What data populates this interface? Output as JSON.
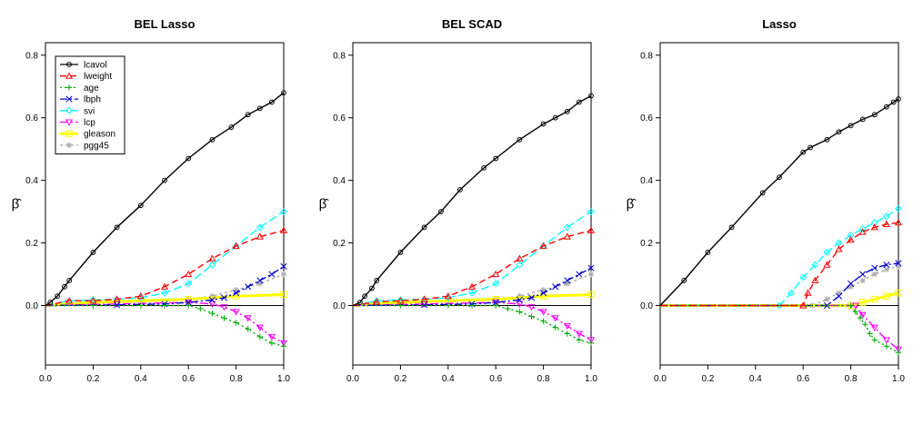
{
  "chart_data": [
    {
      "type": "line",
      "title": "BEL Lasso",
      "xlabel": "",
      "ylabel": "β̂",
      "xlim": [
        0,
        1
      ],
      "ylim": [
        -0.19,
        0.84
      ],
      "xticks": [
        "0.0",
        "0.2",
        "0.4",
        "0.6",
        "0.8",
        "1.0"
      ],
      "yticks": [
        "0.0",
        "0.2",
        "0.4",
        "0.6",
        "0.8"
      ],
      "grid": false,
      "legend": "top-left",
      "series": [
        {
          "name": "lcavol",
          "x": [
            0,
            0.02,
            0.05,
            0.08,
            0.1,
            0.2,
            0.3,
            0.4,
            0.5,
            0.6,
            0.7,
            0.78,
            0.85,
            0.9,
            0.95,
            1.0
          ],
          "y": [
            0,
            0.01,
            0.03,
            0.06,
            0.08,
            0.17,
            0.25,
            0.32,
            0.4,
            0.47,
            0.53,
            0.57,
            0.61,
            0.63,
            0.65,
            0.68
          ]
        },
        {
          "name": "lweight",
          "x": [
            0,
            0.1,
            0.2,
            0.3,
            0.4,
            0.5,
            0.6,
            0.7,
            0.8,
            0.9,
            1.0
          ],
          "y": [
            0,
            0.015,
            0.015,
            0.02,
            0.03,
            0.06,
            0.1,
            0.15,
            0.19,
            0.22,
            0.24
          ]
        },
        {
          "name": "age",
          "x": [
            0,
            0.2,
            0.4,
            0.5,
            0.6,
            0.65,
            0.7,
            0.75,
            0.8,
            0.85,
            0.9,
            0.95,
            1.0
          ],
          "y": [
            0,
            0.0,
            0.0,
            0.0,
            0.0,
            -0.01,
            -0.025,
            -0.04,
            -0.055,
            -0.075,
            -0.1,
            -0.12,
            -0.13
          ]
        },
        {
          "name": "lbph",
          "x": [
            0,
            0.3,
            0.5,
            0.6,
            0.7,
            0.75,
            0.8,
            0.85,
            0.9,
            0.95,
            1.0
          ],
          "y": [
            0,
            0.002,
            0.005,
            0.01,
            0.018,
            0.025,
            0.04,
            0.06,
            0.08,
            0.1,
            0.125
          ]
        },
        {
          "name": "svi",
          "x": [
            0,
            0.1,
            0.2,
            0.3,
            0.4,
            0.5,
            0.6,
            0.7,
            0.8,
            0.9,
            1.0
          ],
          "y": [
            0,
            0.015,
            0.018,
            0.02,
            0.025,
            0.04,
            0.07,
            0.13,
            0.19,
            0.25,
            0.3
          ]
        },
        {
          "name": "lcp",
          "x": [
            0,
            0.3,
            0.6,
            0.7,
            0.75,
            0.8,
            0.85,
            0.9,
            0.95,
            1.0
          ],
          "y": [
            0,
            0.005,
            0.01,
            0.005,
            -0.005,
            -0.02,
            -0.04,
            -0.07,
            -0.1,
            -0.12
          ]
        },
        {
          "name": "gleason",
          "x": [
            0,
            0.2,
            0.4,
            0.6,
            0.8,
            1.0
          ],
          "y": [
            0,
            0.01,
            0.015,
            0.02,
            0.03,
            0.035
          ]
        },
        {
          "name": "pgg45",
          "x": [
            0,
            0.2,
            0.4,
            0.6,
            0.7,
            0.8,
            0.9,
            1.0
          ],
          "y": [
            0,
            0.01,
            0.015,
            0.02,
            0.03,
            0.05,
            0.07,
            0.1
          ]
        }
      ]
    },
    {
      "type": "line",
      "title": "BEL SCAD",
      "xlabel": "",
      "ylabel": "β̂",
      "xlim": [
        0,
        1
      ],
      "ylim": [
        -0.19,
        0.84
      ],
      "xticks": [
        "0.0",
        "0.2",
        "0.4",
        "0.6",
        "0.8",
        "1.0"
      ],
      "yticks": [
        "0.0",
        "0.2",
        "0.4",
        "0.6",
        "0.8"
      ],
      "grid": false,
      "legend": "",
      "series": [
        {
          "name": "lcavol",
          "x": [
            0,
            0.03,
            0.05,
            0.08,
            0.1,
            0.2,
            0.3,
            0.37,
            0.45,
            0.55,
            0.6,
            0.7,
            0.8,
            0.85,
            0.9,
            0.95,
            1.0
          ],
          "y": [
            0,
            0.01,
            0.03,
            0.055,
            0.08,
            0.17,
            0.25,
            0.3,
            0.37,
            0.44,
            0.47,
            0.53,
            0.58,
            0.6,
            0.62,
            0.65,
            0.67
          ]
        },
        {
          "name": "lweight",
          "x": [
            0,
            0.1,
            0.2,
            0.3,
            0.4,
            0.5,
            0.6,
            0.7,
            0.8,
            0.9,
            1.0
          ],
          "y": [
            0,
            0.012,
            0.015,
            0.02,
            0.03,
            0.06,
            0.1,
            0.15,
            0.19,
            0.22,
            0.24
          ]
        },
        {
          "name": "age",
          "x": [
            0,
            0.2,
            0.4,
            0.5,
            0.6,
            0.65,
            0.7,
            0.75,
            0.8,
            0.85,
            0.9,
            0.95,
            1.0
          ],
          "y": [
            0,
            0.0,
            0.0,
            0.0,
            0.0,
            -0.01,
            -0.02,
            -0.035,
            -0.05,
            -0.07,
            -0.09,
            -0.11,
            -0.12
          ]
        },
        {
          "name": "lbph",
          "x": [
            0,
            0.3,
            0.5,
            0.6,
            0.7,
            0.75,
            0.8,
            0.85,
            0.9,
            0.95,
            1.0
          ],
          "y": [
            0,
            0.002,
            0.005,
            0.01,
            0.018,
            0.025,
            0.04,
            0.06,
            0.08,
            0.1,
            0.12
          ]
        },
        {
          "name": "svi",
          "x": [
            0,
            0.1,
            0.2,
            0.3,
            0.4,
            0.5,
            0.6,
            0.7,
            0.8,
            0.9,
            1.0
          ],
          "y": [
            0,
            0.015,
            0.018,
            0.02,
            0.025,
            0.04,
            0.07,
            0.13,
            0.19,
            0.25,
            0.3
          ]
        },
        {
          "name": "lcp",
          "x": [
            0,
            0.3,
            0.6,
            0.7,
            0.75,
            0.8,
            0.85,
            0.9,
            0.95,
            1.0
          ],
          "y": [
            0,
            0.005,
            0.01,
            0.005,
            -0.005,
            -0.02,
            -0.04,
            -0.065,
            -0.09,
            -0.11
          ]
        },
        {
          "name": "gleason",
          "x": [
            0,
            0.2,
            0.4,
            0.6,
            0.8,
            1.0
          ],
          "y": [
            0,
            0.01,
            0.015,
            0.02,
            0.03,
            0.035
          ]
        },
        {
          "name": "pgg45",
          "x": [
            0,
            0.2,
            0.4,
            0.6,
            0.7,
            0.8,
            0.9,
            1.0
          ],
          "y": [
            0,
            0.01,
            0.015,
            0.02,
            0.03,
            0.05,
            0.07,
            0.1
          ]
        }
      ]
    },
    {
      "type": "line",
      "title": "Lasso",
      "xlabel": "",
      "ylabel": "β̂",
      "xlim": [
        0,
        1
      ],
      "ylim": [
        -0.19,
        0.84
      ],
      "xticks": [
        "0.0",
        "0.2",
        "0.4",
        "0.6",
        "0.8",
        "1.0"
      ],
      "yticks": [
        "0.0",
        "0.2",
        "0.4",
        "0.6",
        "0.8"
      ],
      "grid": false,
      "legend": "",
      "series": [
        {
          "name": "lcavol",
          "x": [
            0,
            0.1,
            0.2,
            0.3,
            0.43,
            0.5,
            0.6,
            0.63,
            0.7,
            0.75,
            0.8,
            0.85,
            0.9,
            0.95,
            0.98,
            1.0
          ],
          "y": [
            0,
            0.08,
            0.17,
            0.25,
            0.36,
            0.41,
            0.49,
            0.505,
            0.53,
            0.555,
            0.575,
            0.595,
            0.61,
            0.635,
            0.65,
            0.66
          ]
        },
        {
          "name": "lweight",
          "x": [
            0,
            0.6,
            0.62,
            0.65,
            0.7,
            0.75,
            0.8,
            0.85,
            0.9,
            0.95,
            1.0
          ],
          "y": [
            0,
            0.0,
            0.04,
            0.08,
            0.13,
            0.18,
            0.21,
            0.235,
            0.25,
            0.26,
            0.265
          ]
        },
        {
          "name": "age",
          "x": [
            0,
            0.8,
            0.82,
            0.84,
            0.86,
            0.88,
            0.9,
            0.95,
            1.0
          ],
          "y": [
            0,
            0.0,
            -0.02,
            -0.04,
            -0.06,
            -0.09,
            -0.11,
            -0.13,
            -0.15
          ]
        },
        {
          "name": "lbph",
          "x": [
            0,
            0.7,
            0.75,
            0.8,
            0.85,
            0.9,
            0.95,
            1.0
          ],
          "y": [
            0,
            0.0,
            0.03,
            0.07,
            0.1,
            0.12,
            0.13,
            0.135
          ]
        },
        {
          "name": "svi",
          "x": [
            0,
            0.5,
            0.55,
            0.6,
            0.65,
            0.7,
            0.75,
            0.8,
            0.85,
            0.9,
            0.95,
            1.0
          ],
          "y": [
            0,
            0.0,
            0.04,
            0.09,
            0.13,
            0.17,
            0.2,
            0.225,
            0.245,
            0.265,
            0.285,
            0.31
          ]
        },
        {
          "name": "lcp",
          "x": [
            0,
            0.82,
            0.85,
            0.9,
            0.95,
            1.0
          ],
          "y": [
            0,
            0.0,
            -0.03,
            -0.07,
            -0.11,
            -0.14
          ]
        },
        {
          "name": "gleason",
          "x": [
            0,
            0.8,
            0.85,
            0.9,
            0.95,
            1.0
          ],
          "y": [
            0,
            0.0,
            0.01,
            0.02,
            0.03,
            0.04
          ]
        },
        {
          "name": "pgg45",
          "x": [
            0,
            0.64,
            0.7,
            0.75,
            0.8,
            0.85,
            0.9,
            0.95,
            1.0
          ],
          "y": [
            0,
            0.0,
            0.02,
            0.04,
            0.06,
            0.08,
            0.1,
            0.115,
            0.125
          ]
        }
      ]
    }
  ],
  "series_styles": [
    {
      "name": "lcavol",
      "color": "#000000",
      "dash": "",
      "marker": "circle"
    },
    {
      "name": "lweight",
      "color": "#ff0000",
      "dash": "7,4",
      "marker": "triangle"
    },
    {
      "name": "age",
      "color": "#00aa00",
      "dash": "2,3",
      "marker": "plus"
    },
    {
      "name": "lbph",
      "color": "#0000cc",
      "dash": "8,3,2,3",
      "marker": "x"
    },
    {
      "name": "svi",
      "color": "#00ffff",
      "dash": "9,4",
      "marker": "diamond"
    },
    {
      "name": "lcp",
      "color": "#ff00ff",
      "dash": "9,3,2,3",
      "marker": "triangledown"
    },
    {
      "name": "gleason",
      "color": "#ffff00",
      "dash": "",
      "marker": "square"
    },
    {
      "name": "pgg45",
      "color": "#aaaaaa",
      "dash": "3,3",
      "marker": "star"
    }
  ]
}
